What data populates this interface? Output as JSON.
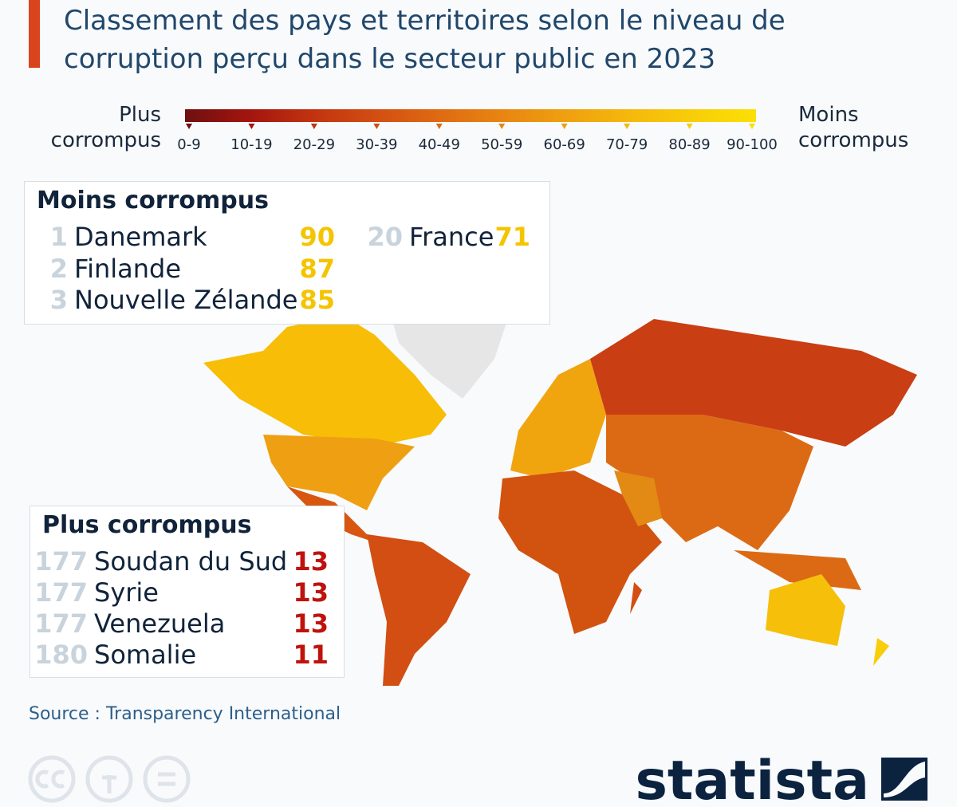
{
  "header": {
    "title": "Classement des pays et territoires selon le niveau de corruption perçu dans le secteur public en 2023"
  },
  "legend": {
    "left_label": "Plus corrompus",
    "right_label": "Moins corrompus",
    "bins": [
      {
        "label": "0-9",
        "color": "#6e1010"
      },
      {
        "label": "10-19",
        "color": "#a3140f"
      },
      {
        "label": "20-29",
        "color": "#c1330f"
      },
      {
        "label": "30-39",
        "color": "#d24e12"
      },
      {
        "label": "40-49",
        "color": "#df6a12"
      },
      {
        "label": "50-59",
        "color": "#e88512"
      },
      {
        "label": "60-69",
        "color": "#efa00f"
      },
      {
        "label": "70-79",
        "color": "#f5b80c"
      },
      {
        "label": "80-89",
        "color": "#f8cd09"
      },
      {
        "label": "90-100",
        "color": "#fbe004"
      }
    ]
  },
  "least_corrupt": {
    "title": "Moins corrompus",
    "score_color": "#f5c400",
    "rows": [
      {
        "rank": 1,
        "country": "Danemark",
        "score": 90
      },
      {
        "rank": 2,
        "country": "Finlande",
        "score": 87
      },
      {
        "rank": 3,
        "country": "Nouvelle Zélande",
        "score": 85
      },
      {
        "rank": 20,
        "country": "France",
        "score": 71
      }
    ]
  },
  "most_corrupt": {
    "title": "Plus corrompus",
    "score_color": "#c0120c",
    "rows": [
      {
        "rank": 177,
        "country": "Soudan du Sud",
        "score": 13
      },
      {
        "rank": 177,
        "country": "Syrie",
        "score": 13
      },
      {
        "rank": 177,
        "country": "Venezuela",
        "score": 13
      },
      {
        "rank": 180,
        "country": "Somalie",
        "score": 11
      }
    ]
  },
  "source": "Source : Transparency International",
  "brand": "statista"
}
